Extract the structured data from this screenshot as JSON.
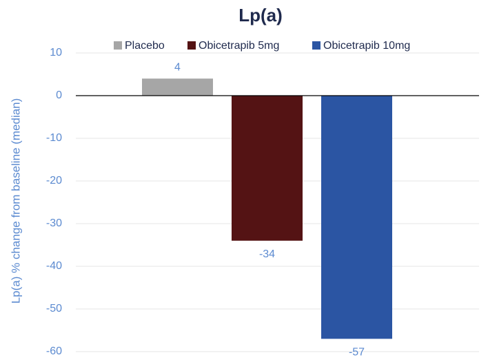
{
  "chart_data": {
    "type": "bar",
    "title": "Lp(a)",
    "y_label": "Lp(a) % change from baseline (median)",
    "categories": [
      null
    ],
    "series": [
      {
        "name": "Placebo",
        "color": "#a6a6a6",
        "values": [
          4
        ]
      },
      {
        "name": "Obicetrapib 5mg",
        "color": "#541314",
        "values": [
          -34
        ]
      },
      {
        "name": "Obicetrapib 10mg",
        "color": "#2b55a3",
        "values": [
          -57
        ]
      }
    ],
    "ylim": [
      -60,
      10
    ],
    "yticks": [
      -60,
      -50,
      -40,
      -30,
      -20,
      -10,
      0,
      10
    ],
    "grid": true,
    "legend": "top",
    "data_labels": true
  }
}
